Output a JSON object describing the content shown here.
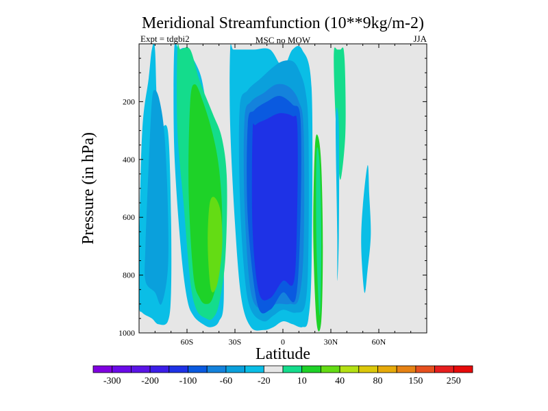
{
  "chart_data": {
    "type": "heatmap",
    "title": "Meridional Streamfunction (10**9kg/m-2)",
    "subtitle_left": "Expt = tdgbi2",
    "subtitle_center": "MSC no MOW",
    "subtitle_right": "JJA",
    "xlabel": "Latitude",
    "ylabel": "Pressure (in hPa)",
    "xlim": [
      -90,
      90
    ],
    "ylim": [
      1000,
      0
    ],
    "x_ticks": [
      {
        "value": -60,
        "label": "60S"
      },
      {
        "value": -30,
        "label": "30S"
      },
      {
        "value": 0,
        "label": "0"
      },
      {
        "value": 30,
        "label": "30N"
      },
      {
        "value": 60,
        "label": "60N"
      }
    ],
    "y_ticks": [
      {
        "value": 200,
        "label": "200"
      },
      {
        "value": 400,
        "label": "400"
      },
      {
        "value": 600,
        "label": "600"
      },
      {
        "value": 800,
        "label": "800"
      },
      {
        "value": 1000,
        "label": "1000"
      }
    ],
    "colorbar": {
      "colors": [
        "#7f00e0",
        "#6a0ae8",
        "#5a14e6",
        "#3c1ee8",
        "#1e32e6",
        "#0a5ae0",
        "#1482dc",
        "#0aa0dc",
        "#0abee6",
        "#e6e6e6",
        "#14dc8c",
        "#1ed228",
        "#64dc14",
        "#b4e114",
        "#dcc80a",
        "#e6aa0a",
        "#e68214",
        "#e6501e",
        "#e61e1e",
        "#e60a0a"
      ],
      "labels": [
        "-300",
        "-200",
        "-100",
        "-60",
        "-20",
        "10",
        "40",
        "80",
        "150",
        "250"
      ]
    },
    "regions": [
      {
        "name": "sh-outer-cell",
        "level": 8,
        "lat": [
          -90,
          -90,
          -88,
          -84,
          -82,
          -80,
          -78,
          -72,
          -70,
          -70,
          -72,
          -78,
          -82,
          -88
        ],
        "p": [
          900,
          700,
          300,
          120,
          20,
          20,
          280,
          300,
          600,
          860,
          960,
          970,
          950,
          930
        ]
      },
      {
        "name": "sh-outer-core",
        "level": 7,
        "lat": [
          -86,
          -86,
          -84,
          -82,
          -80,
          -77,
          -74,
          -72,
          -72,
          -76,
          -80
        ],
        "p": [
          820,
          700,
          420,
          200,
          160,
          200,
          320,
          560,
          780,
          900,
          860
        ]
      },
      {
        "name": "sh-jet-ring",
        "level": 8,
        "lat": [
          -68,
          -68,
          -64,
          -60,
          -56,
          -50,
          -45,
          -40,
          -37,
          -38,
          -42,
          -48,
          -52,
          -60,
          -65
        ],
        "p": [
          20,
          360,
          700,
          880,
          940,
          970,
          980,
          960,
          880,
          520,
          320,
          200,
          100,
          20,
          20
        ]
      },
      {
        "name": "sh-ferrel-cell",
        "level": 10,
        "lat": [
          -66,
          -66,
          -62,
          -58,
          -54,
          -48,
          -44,
          -40,
          -36,
          -35,
          -38,
          -44,
          -52,
          -58,
          -64
        ],
        "p": [
          20,
          300,
          560,
          820,
          920,
          950,
          950,
          900,
          740,
          480,
          330,
          240,
          130,
          20,
          20
        ]
      },
      {
        "name": "sh-ferrel-strong",
        "level": 11,
        "lat": [
          -58,
          -59,
          -56,
          -52,
          -48,
          -44,
          -40,
          -38,
          -40,
          -44,
          -50,
          -55
        ],
        "p": [
          200,
          500,
          800,
          880,
          900,
          880,
          780,
          600,
          430,
          310,
          200,
          140
        ]
      },
      {
        "name": "sh-ferrel-core",
        "level": 12,
        "lat": [
          -46,
          -47,
          -45,
          -41,
          -38,
          -39,
          -43
        ],
        "p": [
          560,
          700,
          850,
          830,
          700,
          580,
          530
        ]
      },
      {
        "name": "hadley-cell",
        "level": 8,
        "lat": [
          -33,
          -33,
          -30,
          -26,
          -20,
          -12,
          -6,
          0,
          6,
          12,
          16,
          18,
          18,
          12,
          6,
          0,
          -8,
          -18,
          -26,
          -31
        ],
        "p": [
          20,
          280,
          620,
          880,
          980,
          990,
          980,
          960,
          970,
          980,
          950,
          740,
          160,
          20,
          20,
          80,
          20,
          20,
          20,
          20
        ]
      },
      {
        "name": "hadley-level-7",
        "level": 7,
        "lat": [
          -27,
          -27,
          -24,
          -20,
          -12,
          -6,
          0,
          8,
          14,
          16,
          16,
          14,
          10,
          6,
          0,
          -6,
          -14,
          -22
        ],
        "p": [
          220,
          520,
          800,
          920,
          960,
          940,
          920,
          930,
          900,
          700,
          300,
          160,
          90,
          60,
          60,
          80,
          120,
          160
        ]
      },
      {
        "name": "hadley-level-6",
        "level": 6,
        "lat": [
          -24,
          -24,
          -20,
          -12,
          -4,
          4,
          10,
          13,
          13,
          10,
          4,
          -4,
          -12,
          -20
        ],
        "p": [
          260,
          560,
          860,
          920,
          900,
          900,
          880,
          700,
          300,
          200,
          150,
          140,
          170,
          200
        ]
      },
      {
        "name": "hadley-level-5",
        "level": 5,
        "lat": [
          -22,
          -22,
          -16,
          -8,
          0,
          8,
          11,
          11,
          6,
          -2,
          -10,
          -18
        ],
        "p": [
          280,
          600,
          900,
          920,
          860,
          880,
          600,
          260,
          210,
          180,
          200,
          230
        ]
      },
      {
        "name": "hadley-core",
        "level": 4,
        "lat": [
          -19,
          -19,
          -15,
          -8,
          0,
          7,
          9,
          9,
          6,
          -2,
          -10,
          -17
        ],
        "p": [
          310,
          640,
          860,
          880,
          820,
          820,
          560,
          280,
          250,
          240,
          260,
          280
        ]
      },
      {
        "name": "nh-summer-cell",
        "level": 11,
        "lat": [
          20,
          19,
          21,
          24,
          25,
          24,
          22
        ],
        "p": [
          360,
          660,
          960,
          960,
          700,
          420,
          320
        ]
      },
      {
        "name": "nh-summer-core",
        "level": 10,
        "lat": [
          21,
          21,
          23,
          24,
          23
        ],
        "p": [
          380,
          700,
          940,
          700,
          420
        ]
      },
      {
        "name": "nh-upper-plume",
        "level": 10,
        "lat": [
          32,
          32,
          33,
          34,
          36,
          39,
          39,
          38,
          36,
          34
        ],
        "p": [
          20,
          120,
          260,
          360,
          470,
          320,
          120,
          20,
          20,
          20
        ]
      },
      {
        "name": "nh-thin-filament",
        "level": 8,
        "lat": [
          33,
          34,
          34,
          35,
          35
        ],
        "p": [
          260,
          660,
          820,
          660,
          280
        ]
      },
      {
        "name": "nh-mid-cell",
        "level": 8,
        "lat": [
          50,
          49,
          51,
          53,
          55,
          54,
          53
        ],
        "p": [
          560,
          700,
          860,
          780,
          660,
          520,
          420
        ]
      }
    ]
  }
}
